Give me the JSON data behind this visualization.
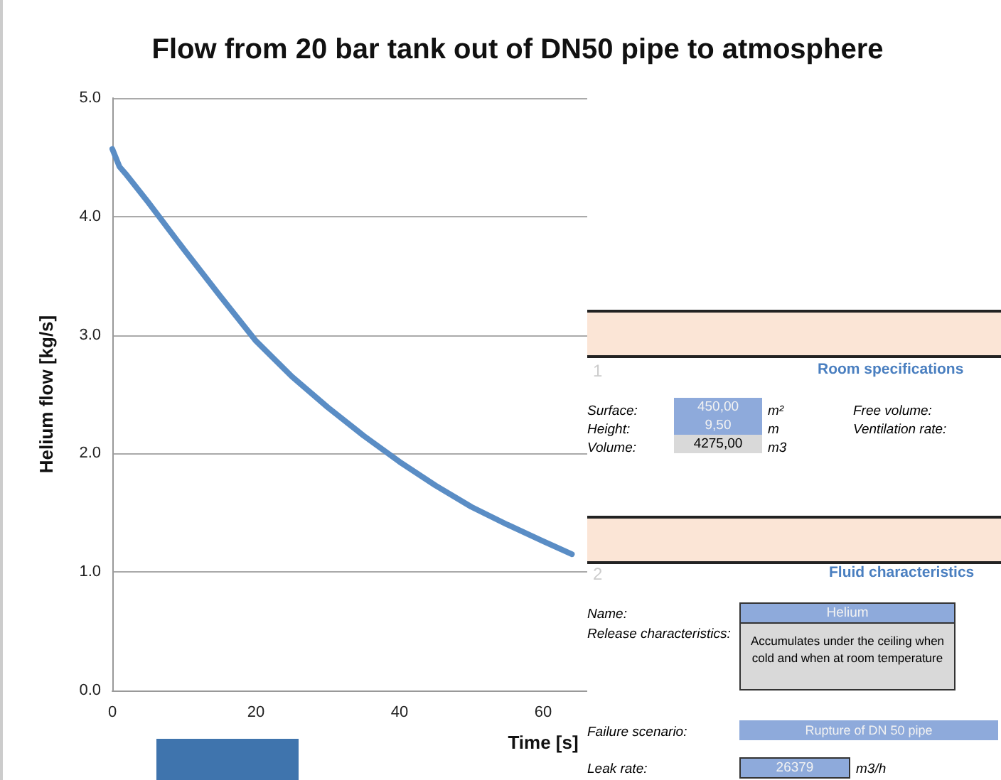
{
  "chart_data": {
    "type": "line",
    "title": "Flow from 20 bar tank out of DN50 pipe to atmosphere",
    "xlabel": "Time [s]",
    "ylabel": "Helium flow [kg/s]",
    "x": [
      0,
      1,
      2,
      5,
      10,
      15,
      20,
      25,
      30,
      35,
      40,
      45,
      50,
      55,
      60,
      64
    ],
    "series": [
      {
        "color": "#5a8dc5",
        "values": [
          4.57,
          4.42,
          4.35,
          4.12,
          3.72,
          3.33,
          2.95,
          2.65,
          2.39,
          2.15,
          1.93,
          1.73,
          1.55,
          1.4,
          1.26,
          1.15
        ]
      }
    ],
    "xlim": [
      0,
      120
    ],
    "xticks": [
      0,
      20,
      40,
      60
    ],
    "ylim": [
      0,
      5
    ],
    "yticks": [
      {
        "value": 0,
        "label": "0.0"
      },
      {
        "value": 1,
        "label": "1.0"
      },
      {
        "value": 2,
        "label": "2.0"
      },
      {
        "value": 3,
        "label": "3.0"
      },
      {
        "value": 4,
        "label": "4.0"
      },
      {
        "value": 5,
        "label": "5.0"
      }
    ],
    "grid": "y",
    "marker": "none",
    "line_style": "solid",
    "annotations": [
      "1",
      "Room specifications",
      "Surface:",
      "450,00",
      "m²",
      "Height:",
      "9,50",
      "m",
      "Volume:",
      "4275,00",
      "m3",
      "Free volume:",
      "Ventilation rate:",
      "2",
      "Fluid characteristics",
      "Name:",
      "Helium",
      "Release characteristics:",
      "Accumulates under the ceiling when cold and when at room temperature",
      "Failure scenario:",
      "Rupture of DN 50 pipe",
      "Leak rate:",
      "26379",
      "m3/h"
    ]
  }
}
